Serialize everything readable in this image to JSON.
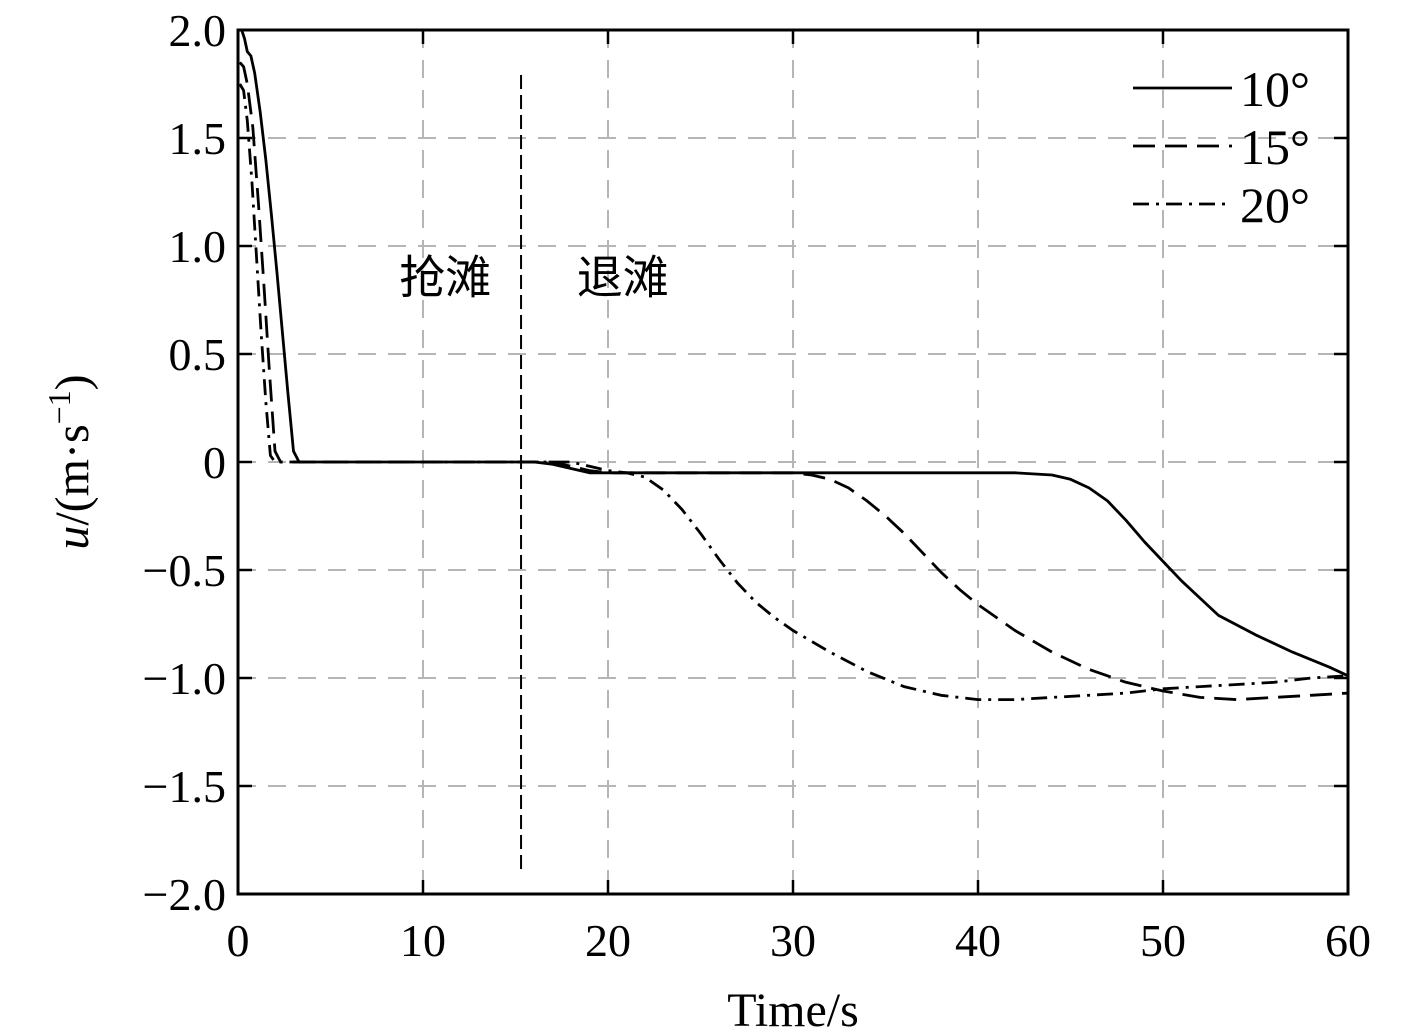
{
  "chart_data": {
    "type": "line",
    "xlabel": "Time/s",
    "ylabel": {
      "var": "u",
      "rest": "/(m·s",
      "sup": "−1",
      "close": ")"
    },
    "xlim": [
      0,
      60
    ],
    "ylim": [
      -2.0,
      2.0
    ],
    "xticks": [
      0,
      10,
      20,
      30,
      40,
      50,
      60
    ],
    "yticks": [
      2.0,
      1.5,
      1.0,
      0.5,
      0,
      -0.5,
      -1.0,
      -1.5,
      -2.0
    ],
    "xtick_labels": [
      "0",
      "10",
      "20",
      "30",
      "40",
      "50",
      "60"
    ],
    "ytick_labels": [
      "2.0",
      "1.5",
      "1.0",
      "0.5",
      "0",
      "−0.5",
      "−1.0",
      "−1.5",
      "−2.0"
    ],
    "grid": true,
    "legend": "top-right",
    "divider_x": 15.3,
    "annotations": [
      {
        "text": "抢滩",
        "x": 11.2,
        "y": 0.78
      },
      {
        "text": "退滩",
        "x": 20.8,
        "y": 0.78
      }
    ],
    "series": [
      {
        "name": "10°",
        "style": "solid",
        "x": [
          0.2,
          0.35,
          0.5,
          0.7,
          0.9,
          1.2,
          1.5,
          1.8,
          2.1,
          2.4,
          2.7,
          3.0,
          3.3,
          4,
          8,
          12,
          16,
          17,
          18,
          19,
          20,
          22,
          26,
          30,
          35,
          40,
          42,
          44,
          45,
          46,
          47,
          48,
          49,
          50,
          51,
          52,
          53,
          55,
          57,
          59,
          60
        ],
        "y": [
          2.0,
          1.96,
          1.9,
          1.88,
          1.8,
          1.62,
          1.4,
          1.15,
          0.88,
          0.6,
          0.32,
          0.05,
          0.0,
          0.0,
          0.0,
          0.0,
          0.0,
          -0.01,
          -0.03,
          -0.05,
          -0.05,
          -0.05,
          -0.05,
          -0.05,
          -0.05,
          -0.05,
          -0.05,
          -0.06,
          -0.08,
          -0.12,
          -0.18,
          -0.27,
          -0.37,
          -0.46,
          -0.55,
          -0.63,
          -0.71,
          -0.8,
          -0.88,
          -0.95,
          -0.99
        ]
      },
      {
        "name": "15°",
        "style": "dashed",
        "x": [
          0.1,
          0.3,
          0.5,
          0.8,
          1.1,
          1.4,
          1.7,
          2.0,
          2.3,
          3,
          6,
          10,
          14,
          17,
          18,
          19,
          20,
          22,
          26,
          30,
          31,
          32,
          33,
          34,
          35,
          36,
          37,
          38,
          39,
          40,
          42,
          44,
          46,
          48,
          50,
          52,
          54,
          56,
          58,
          60
        ],
        "y": [
          1.85,
          1.83,
          1.75,
          1.55,
          1.2,
          0.82,
          0.42,
          0.05,
          0.0,
          0.0,
          0.0,
          0.0,
          0.0,
          0.0,
          -0.02,
          -0.04,
          -0.05,
          -0.05,
          -0.05,
          -0.05,
          -0.06,
          -0.08,
          -0.12,
          -0.18,
          -0.25,
          -0.33,
          -0.42,
          -0.51,
          -0.59,
          -0.66,
          -0.78,
          -0.88,
          -0.96,
          -1.02,
          -1.06,
          -1.09,
          -1.1,
          -1.09,
          -1.08,
          -1.07
        ]
      },
      {
        "name": "20°",
        "style": "dashdot",
        "x": [
          0.1,
          0.3,
          0.5,
          0.75,
          1.0,
          1.25,
          1.5,
          1.75,
          2.0,
          2.5,
          5,
          10,
          15,
          18,
          19,
          20,
          21,
          22,
          23,
          24,
          25,
          26,
          27,
          28,
          29,
          30,
          32,
          34,
          36,
          38,
          40,
          42,
          44,
          46,
          48,
          50,
          52,
          54,
          56,
          58,
          60
        ],
        "y": [
          1.75,
          1.72,
          1.58,
          1.3,
          0.95,
          0.6,
          0.28,
          0.03,
          0.0,
          0.0,
          0.0,
          0.0,
          0.0,
          0.0,
          -0.02,
          -0.04,
          -0.05,
          -0.07,
          -0.13,
          -0.22,
          -0.33,
          -0.45,
          -0.56,
          -0.65,
          -0.72,
          -0.78,
          -0.88,
          -0.97,
          -1.04,
          -1.08,
          -1.1,
          -1.1,
          -1.09,
          -1.08,
          -1.07,
          -1.05,
          -1.04,
          -1.03,
          -1.02,
          -1.0,
          -0.99
        ]
      }
    ]
  }
}
